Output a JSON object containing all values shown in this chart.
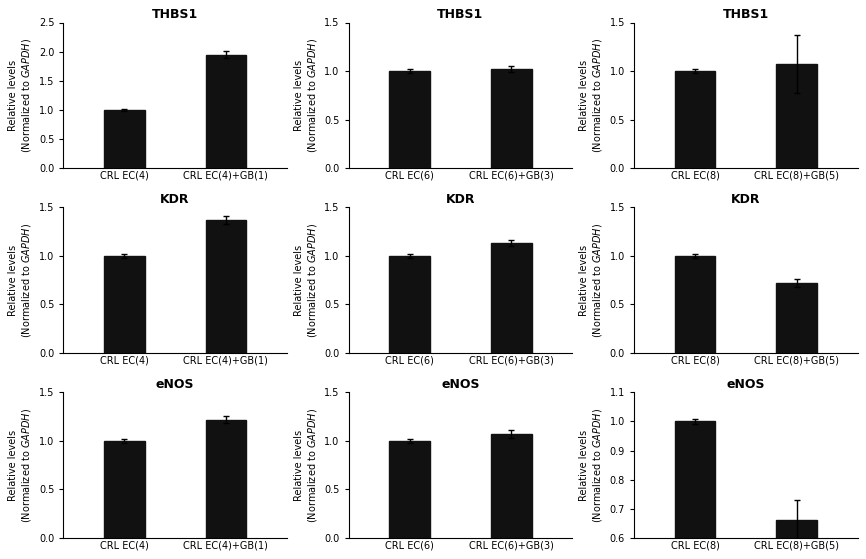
{
  "subplots": [
    {
      "title": "THBS1",
      "categories": [
        "CRL EC(4)",
        "CRL EC(4)+GB(1)"
      ],
      "values": [
        1.0,
        1.95
      ],
      "errors": [
        0.02,
        0.06
      ],
      "ylim": [
        0,
        2.5
      ],
      "yticks": [
        0.0,
        0.5,
        1.0,
        1.5,
        2.0,
        2.5
      ]
    },
    {
      "title": "THBS1",
      "categories": [
        "CRL EC(6)",
        "CRL EC(6)+GB(3)"
      ],
      "values": [
        1.0,
        1.02
      ],
      "errors": [
        0.02,
        0.03
      ],
      "ylim": [
        0,
        1.5
      ],
      "yticks": [
        0.0,
        0.5,
        1.0,
        1.5
      ]
    },
    {
      "title": "THBS1",
      "categories": [
        "CRL EC(8)",
        "CRL EC(8)+GB(5)"
      ],
      "values": [
        1.0,
        1.07
      ],
      "errors": [
        0.02,
        0.3
      ],
      "ylim": [
        0,
        1.5
      ],
      "yticks": [
        0.0,
        0.5,
        1.0,
        1.5
      ]
    },
    {
      "title": "KDR",
      "categories": [
        "CRL EC(4)",
        "CRL EC(4)+GB(1)"
      ],
      "values": [
        1.0,
        1.37
      ],
      "errors": [
        0.02,
        0.04
      ],
      "ylim": [
        0,
        1.5
      ],
      "yticks": [
        0.0,
        0.5,
        1.0,
        1.5
      ]
    },
    {
      "title": "KDR",
      "categories": [
        "CRL EC(6)",
        "CRL EC(6)+GB(3)"
      ],
      "values": [
        1.0,
        1.13
      ],
      "errors": [
        0.02,
        0.03
      ],
      "ylim": [
        0,
        1.5
      ],
      "yticks": [
        0.0,
        0.5,
        1.0,
        1.5
      ]
    },
    {
      "title": "KDR",
      "categories": [
        "CRL EC(8)",
        "CRL EC(8)+GB(5)"
      ],
      "values": [
        1.0,
        0.72
      ],
      "errors": [
        0.02,
        0.04
      ],
      "ylim": [
        0,
        1.5
      ],
      "yticks": [
        0.0,
        0.5,
        1.0,
        1.5
      ]
    },
    {
      "title": "eNOS",
      "categories": [
        "CRL EC(4)",
        "CRL EC(4)+GB(1)"
      ],
      "values": [
        1.0,
        1.22
      ],
      "errors": [
        0.02,
        0.04
      ],
      "ylim": [
        0,
        1.5
      ],
      "yticks": [
        0.0,
        0.5,
        1.0,
        1.5
      ]
    },
    {
      "title": "eNOS",
      "categories": [
        "CRL EC(6)",
        "CRL EC(6)+GB(3)"
      ],
      "values": [
        1.0,
        1.07
      ],
      "errors": [
        0.02,
        0.04
      ],
      "ylim": [
        0,
        1.5
      ],
      "yticks": [
        0.0,
        0.5,
        1.0,
        1.5
      ]
    },
    {
      "title": "eNOS",
      "categories": [
        "CRL EC(8)",
        "CRL EC(8)+GB(5)"
      ],
      "values": [
        1.0,
        0.66
      ],
      "errors": [
        0.01,
        0.07
      ],
      "ylim": [
        0.6,
        1.1
      ],
      "yticks": [
        0.6,
        0.7,
        0.8,
        0.9,
        1.0,
        1.1
      ]
    }
  ],
  "bar_color": "#111111",
  "bar_width": 0.4,
  "title_fontsize": 9,
  "tick_fontsize": 7,
  "ylabel_fontsize": 7,
  "capsize": 2,
  "background_color": "#ffffff"
}
